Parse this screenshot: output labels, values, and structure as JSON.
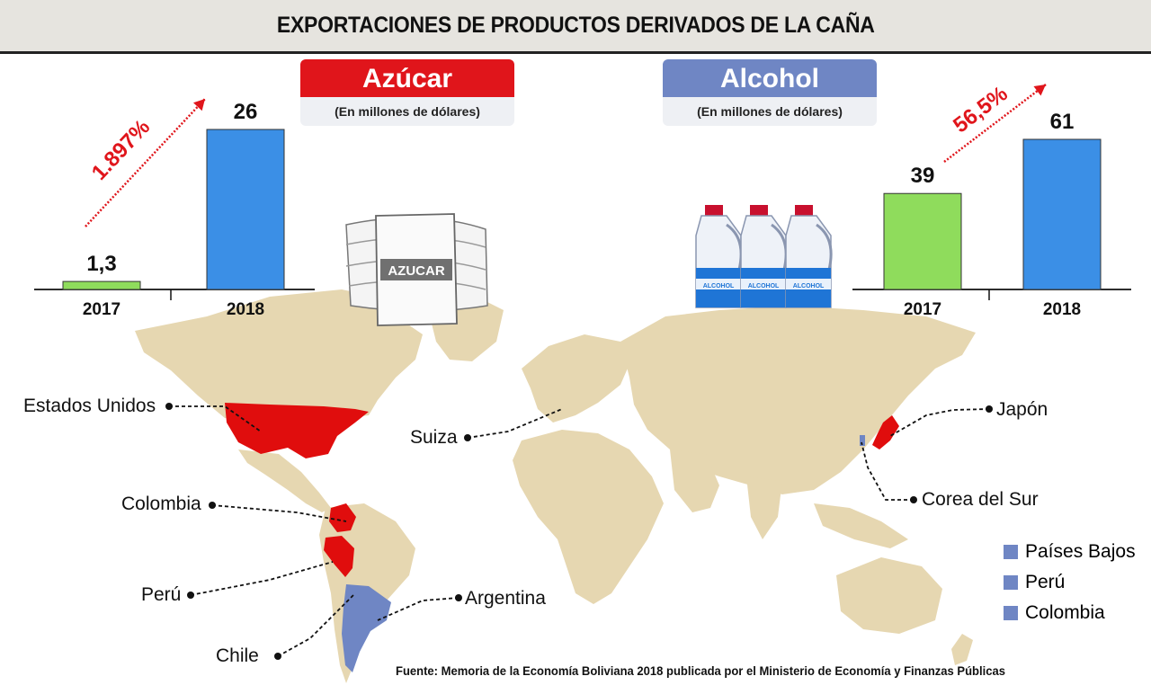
{
  "title": "EXPORTACIONES DE PRODUCTOS DERIVADOS DE LA CAÑA",
  "source": "Fuente: Memoria de la Economía Boliviana 2018 publicada por el Ministerio de Economía y Finanzas Públicas",
  "colors": {
    "sugar_header": "#e0151b",
    "alcohol_header": "#6f86c4",
    "bar_2017": "#8fdc5c",
    "bar_2018": "#3b8fe6",
    "growth_arrow": "#e0151b",
    "map_land": "#e6d7b1",
    "sugar_country": "#e00d0d",
    "alcohol_country": "#6f86c4"
  },
  "sugar_panel": {
    "header": "Azúcar",
    "subheader": "(En millones de dólares)"
  },
  "alcohol_panel": {
    "header": "Alcohol",
    "subheader": "(En millones de dólares)"
  },
  "sack_label": "AZUCAR",
  "bottle_label": "ALCOHOL",
  "chart_data": [
    {
      "type": "bar",
      "title": "Azúcar",
      "subtitle": "(En millones de dólares)",
      "categories": [
        "2017",
        "2018"
      ],
      "values": [
        1.3,
        26
      ],
      "value_labels": [
        "1,3",
        "26"
      ],
      "growth_label": "1.897%",
      "ylim": [
        0,
        26
      ]
    },
    {
      "type": "bar",
      "title": "Alcohol",
      "subtitle": "(En millones de dólares)",
      "categories": [
        "2017",
        "2018"
      ],
      "values": [
        39,
        61
      ],
      "value_labels": [
        "39",
        "61"
      ],
      "growth_label": "56,5%",
      "ylim": [
        0,
        61
      ]
    }
  ],
  "map": {
    "sugar_destinations": [
      "Estados Unidos",
      "Colombia",
      "Perú",
      "Chile",
      "Argentina",
      "Suiza",
      "Japón",
      "Corea del Sur"
    ],
    "legend": [
      {
        "label": "Países Bajos"
      },
      {
        "label": "Perú"
      },
      {
        "label": "Colombia"
      }
    ]
  }
}
